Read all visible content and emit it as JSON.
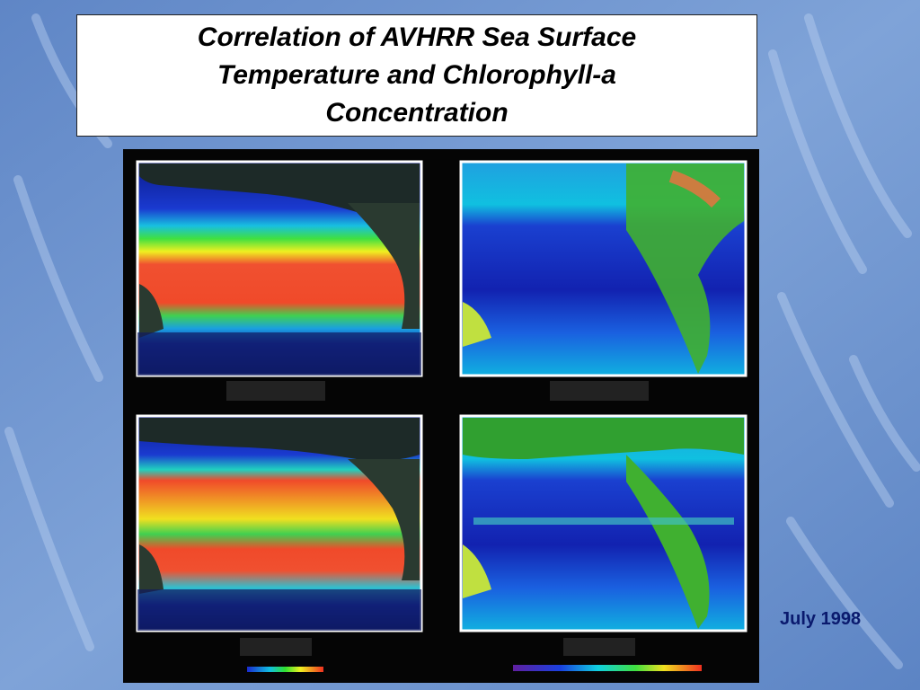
{
  "slide": {
    "title": "Correlation of AVHRR Sea Surface Temperature and Chlorophyll-a Concentration",
    "caption": "July 1998"
  }
}
